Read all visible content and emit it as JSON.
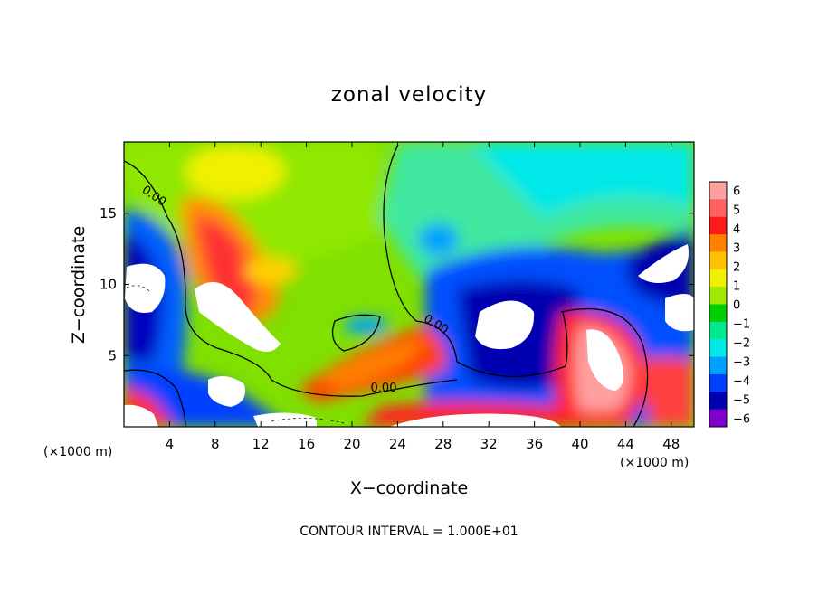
{
  "chart_data": {
    "type": "heatmap",
    "title": "zonal velocity",
    "xlabel": "X−coordinate",
    "ylabel": "Z−coordinate",
    "xlim": [
      0,
      50
    ],
    "ylim": [
      0,
      20
    ],
    "x_ticks": [
      "4",
      "8",
      "12",
      "16",
      "20",
      "24",
      "28",
      "32",
      "36",
      "40",
      "44",
      "48"
    ],
    "y_ticks": [
      "5",
      "10",
      "15"
    ],
    "x_unit_left": "(×1000 m)",
    "x_unit_right": "(×1000 m)",
    "contour_label": "0.00",
    "footnote": "CONTOUR INTERVAL = 1.000E+01",
    "colorbar": {
      "ticks": [
        "6",
        "5",
        "4",
        "3",
        "2",
        "1",
        "0",
        "−1",
        "−2",
        "−3",
        "−4",
        "−5",
        "−6"
      ],
      "colors": [
        "#ffa0a0",
        "#ff6060",
        "#ff1a1a",
        "#ff8000",
        "#ffc000",
        "#f0f000",
        "#a0e800",
        "#00d000",
        "#00e890",
        "#00e8e8",
        "#00a0ff",
        "#0040ff",
        "#0000b0",
        "#8000d0"
      ]
    }
  }
}
